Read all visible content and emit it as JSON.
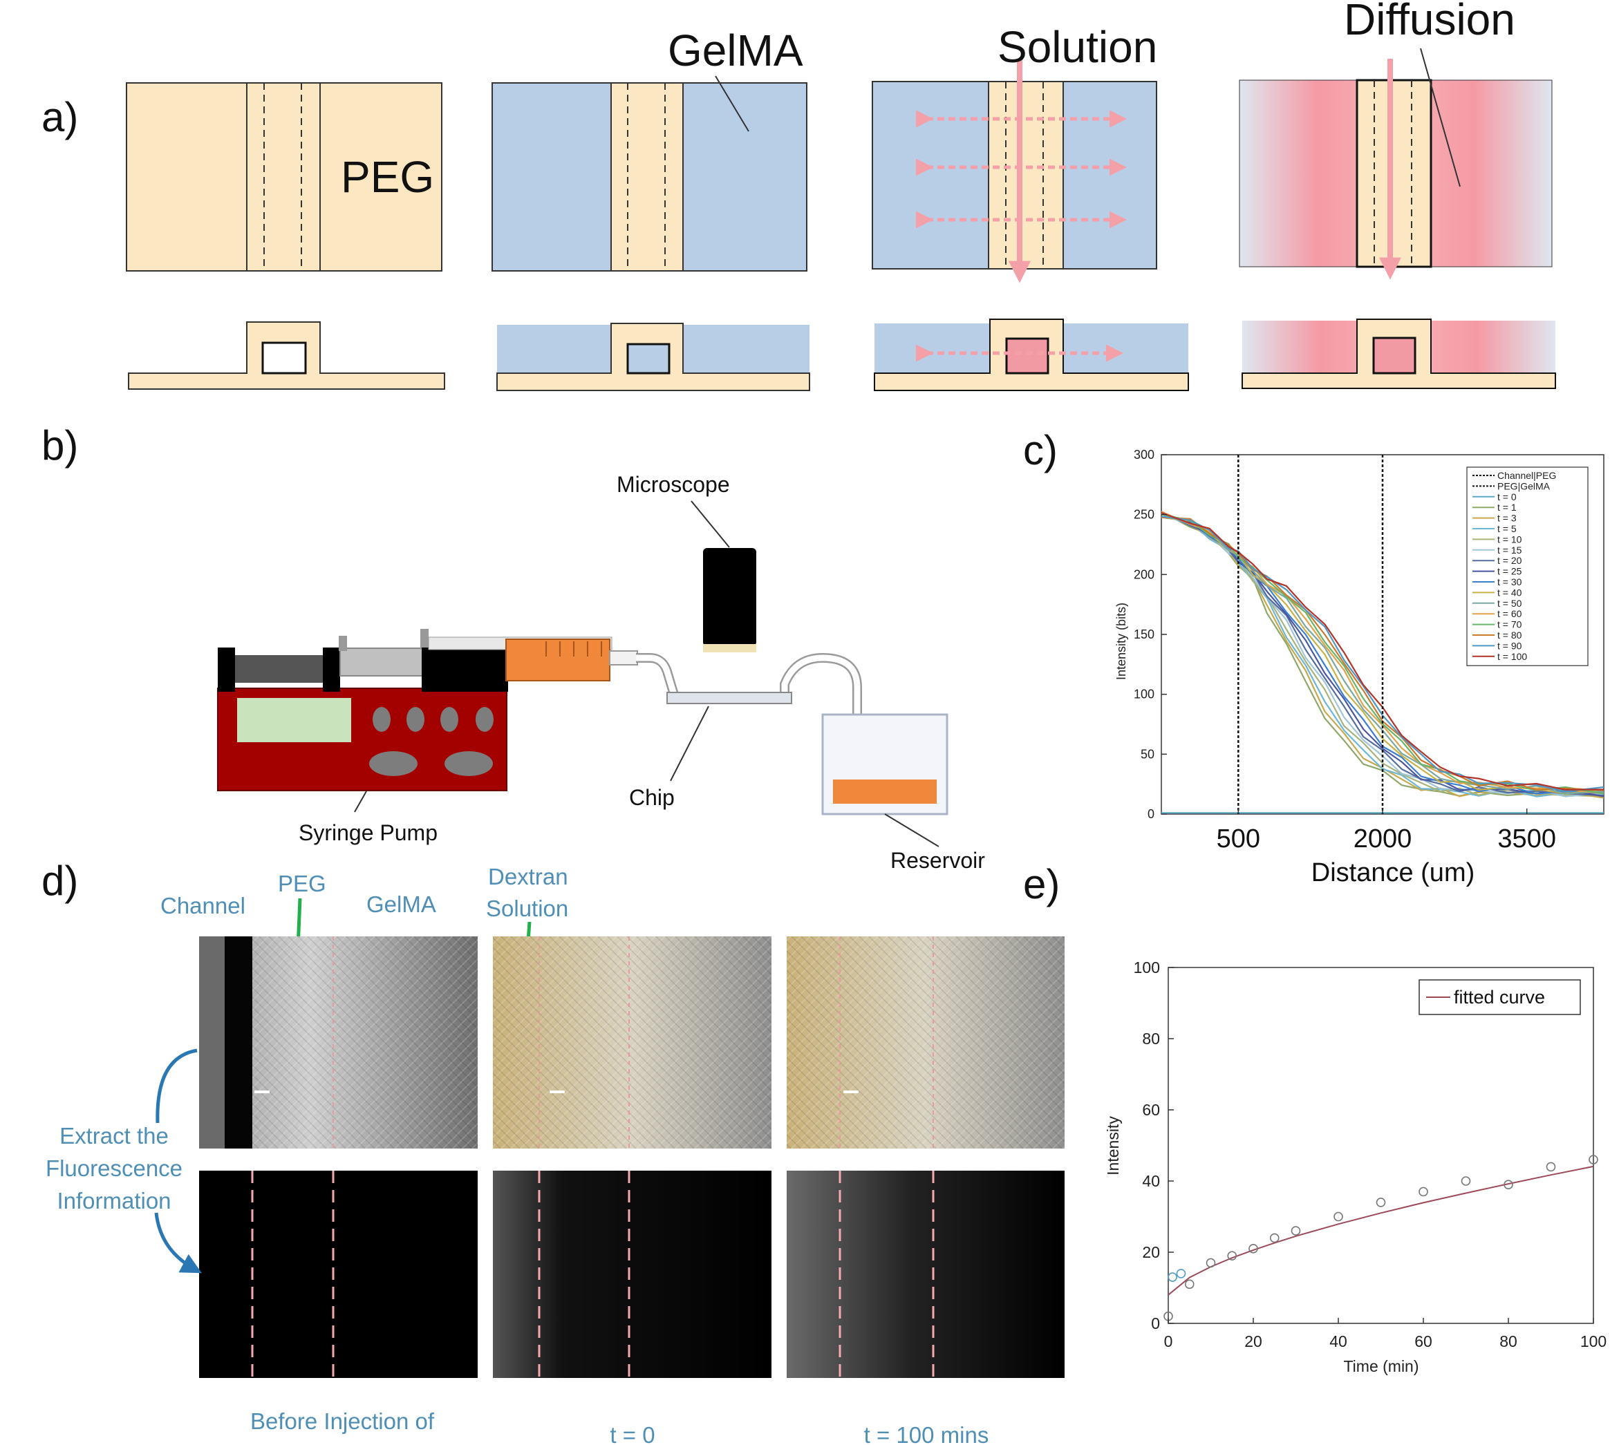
{
  "colors": {
    "peg": "#fbe8c3",
    "gelma": "#b8cde6",
    "dextran": "#f4a0a8",
    "pump_body": "#a30000",
    "syringe_fluid": "#f0883c",
    "annotation_blue": "#4f8fb6",
    "peg_marker": "#22b04a"
  },
  "panel_a": {
    "letter": "a)",
    "label_peg": "PEG",
    "label_gelma": "GelMA",
    "label_solution": "Solution",
    "label_diffusion": "Diffusion"
  },
  "panel_b": {
    "letter": "b)",
    "label_microscope": "Microscope",
    "label_syringe_pump": "Syringe Pump",
    "label_chip": "Chip",
    "label_reservoir": "Reservoir"
  },
  "panel_c": {
    "letter": "c)",
    "xlabel": "Distance (um)",
    "ylabel": "Intensity (bits)",
    "y_ticks": [
      "0",
      "50",
      "100",
      "150",
      "200",
      "250",
      "300"
    ],
    "x_ticks": [
      "500",
      "2000",
      "3500"
    ],
    "legend": [
      "Channel|PEG",
      "PEG|GelMA",
      "t = 0",
      "t = 1",
      "t = 3",
      "t = 5",
      "t = 10",
      "t = 15",
      "t = 20",
      "t = 25",
      "t = 30",
      "t = 40",
      "t = 50",
      "t = 60",
      "t = 70",
      "t = 80",
      "t = 90",
      "t = 100"
    ]
  },
  "panel_d": {
    "letter": "d)",
    "label_channel": "Channel",
    "label_peg": "PEG",
    "label_gelma": "GelMA",
    "label_dextran_line1": "Dextran",
    "label_dextran_line2": "Solution",
    "extract_line1": "Extract the",
    "extract_line2": "Fluorescence",
    "extract_line3": "Information",
    "caption_before": "Before Injection of",
    "caption_t0": "t = 0",
    "caption_t100": "t = 100 mins"
  },
  "panel_e": {
    "letter": "e)",
    "xlabel": "Time (min)",
    "ylabel": "Intensity",
    "legend_label": "fitted curve",
    "x_ticks": [
      "0",
      "20",
      "40",
      "60",
      "80",
      "100"
    ],
    "y_ticks": [
      "0",
      "20",
      "40",
      "60",
      "80",
      "100"
    ]
  },
  "chart_data": [
    {
      "type": "line",
      "panel": "c",
      "xlabel": "Distance (um)",
      "ylabel": "Intensity (bits)",
      "xlim": [
        -300,
        4300
      ],
      "ylim": [
        0,
        300
      ],
      "x_ticks": [
        500,
        2000,
        3500
      ],
      "y_ticks": [
        0,
        50,
        100,
        150,
        200,
        250,
        300
      ],
      "vertical_lines": [
        {
          "name": "Channel|PEG",
          "x": 500
        },
        {
          "name": "PEG|GelMA",
          "x": 2000
        }
      ],
      "legend_position": "top-right",
      "grid": false,
      "x": [
        -300,
        0,
        200,
        400,
        500,
        650,
        800,
        1000,
        1200,
        1400,
        1600,
        1800,
        2000,
        2200,
        2400,
        2600,
        2800,
        3000,
        3300,
        3600,
        3900,
        4300
      ],
      "series": [
        {
          "name": "t = 0",
          "values": [
            1,
            1,
            1,
            1,
            1,
            1,
            1,
            1,
            1,
            1,
            1,
            1,
            1,
            1,
            1,
            1,
            1,
            1,
            1,
            1,
            1,
            1
          ]
        },
        {
          "name": "t = 1",
          "values": [
            250,
            242,
            232,
            218,
            208,
            195,
            170,
            140,
            112,
            80,
            60,
            44,
            34,
            26,
            20,
            18,
            17,
            16,
            18,
            16,
            16,
            16
          ]
        },
        {
          "name": "t = 3",
          "values": [
            250,
            242,
            232,
            218,
            210,
            195,
            175,
            145,
            118,
            88,
            65,
            48,
            38,
            28,
            22,
            19,
            17,
            17,
            18,
            17,
            16,
            16
          ]
        },
        {
          "name": "t = 5",
          "values": [
            250,
            242,
            232,
            219,
            210,
            196,
            178,
            150,
            122,
            95,
            70,
            52,
            40,
            30,
            23,
            20,
            18,
            17,
            18,
            17,
            16,
            16
          ]
        },
        {
          "name": "t = 10",
          "values": [
            250,
            243,
            233,
            219,
            211,
            197,
            180,
            155,
            128,
            102,
            76,
            57,
            44,
            33,
            25,
            21,
            19,
            18,
            19,
            17,
            17,
            16
          ]
        },
        {
          "name": "t = 15",
          "values": [
            250,
            243,
            233,
            220,
            212,
            198,
            182,
            160,
            133,
            108,
            82,
            62,
            47,
            36,
            27,
            23,
            20,
            19,
            19,
            18,
            17,
            16
          ]
        },
        {
          "name": "t = 20",
          "values": [
            250,
            243,
            233,
            220,
            212,
            199,
            184,
            164,
            138,
            114,
            88,
            67,
            51,
            39,
            29,
            24,
            21,
            20,
            20,
            18,
            17,
            17
          ]
        },
        {
          "name": "t = 25",
          "values": [
            250,
            243,
            234,
            221,
            213,
            200,
            186,
            168,
            143,
            120,
            94,
            72,
            55,
            42,
            31,
            26,
            22,
            20,
            20,
            19,
            18,
            17
          ]
        },
        {
          "name": "t = 30",
          "values": [
            250,
            243,
            234,
            221,
            213,
            201,
            188,
            171,
            148,
            125,
            99,
            77,
            59,
            45,
            33,
            27,
            23,
            21,
            21,
            19,
            18,
            17
          ]
        },
        {
          "name": "t = 40",
          "values": [
            250,
            244,
            234,
            222,
            214,
            202,
            190,
            175,
            154,
            131,
            106,
            83,
            64,
            49,
            36,
            29,
            25,
            22,
            22,
            20,
            19,
            18
          ]
        },
        {
          "name": "t = 50",
          "values": [
            250,
            244,
            235,
            222,
            215,
            203,
            192,
            178,
            159,
            137,
            112,
            88,
            68,
            53,
            39,
            31,
            26,
            23,
            23,
            21,
            19,
            18
          ]
        },
        {
          "name": "t = 60",
          "values": [
            250,
            244,
            235,
            223,
            216,
            204,
            194,
            181,
            163,
            142,
            118,
            93,
            72,
            56,
            42,
            33,
            28,
            24,
            24,
            21,
            20,
            19
          ]
        },
        {
          "name": "t = 70",
          "values": [
            250,
            244,
            235,
            223,
            216,
            205,
            195,
            183,
            166,
            146,
            122,
            97,
            76,
            59,
            44,
            35,
            29,
            25,
            24,
            22,
            20,
            19
          ]
        },
        {
          "name": "t = 80",
          "values": [
            250,
            244,
            236,
            224,
            217,
            206,
            196,
            185,
            169,
            150,
            127,
            101,
            80,
            62,
            46,
            37,
            30,
            26,
            25,
            22,
            21,
            19
          ]
        },
        {
          "name": "t = 90",
          "values": [
            250,
            245,
            236,
            224,
            217,
            207,
            197,
            187,
            172,
            154,
            131,
            105,
            83,
            65,
            48,
            38,
            31,
            27,
            26,
            23,
            21,
            20
          ]
        },
        {
          "name": "t = 100",
          "values": [
            250,
            245,
            236,
            225,
            218,
            208,
            198,
            188,
            175,
            157,
            135,
            109,
            87,
            68,
            50,
            40,
            32,
            28,
            26,
            23,
            22,
            20
          ]
        }
      ]
    },
    {
      "type": "scatter",
      "panel": "e",
      "xlabel": "Time (min)",
      "ylabel": "Intensity",
      "xlim": [
        0,
        100
      ],
      "ylim": [
        0,
        100
      ],
      "x_ticks": [
        0,
        20,
        40,
        60,
        80,
        100
      ],
      "y_ticks": [
        0,
        20,
        40,
        60,
        80,
        100
      ],
      "legend_position": "top-right",
      "grid": false,
      "series": [
        {
          "name": "",
          "x": [
            0,
            1,
            3,
            5,
            10,
            15,
            20,
            25,
            30,
            40,
            50,
            60,
            70,
            80,
            90,
            100
          ],
          "y": [
            2,
            13,
            14,
            11,
            17,
            19,
            21,
            24,
            26,
            30,
            34,
            37,
            40,
            39,
            44,
            46
          ]
        },
        {
          "name": "fitted curve",
          "x": [
            0,
            5,
            10,
            15,
            20,
            25,
            30,
            40,
            50,
            60,
            70,
            80,
            90,
            100
          ],
          "y": [
            8,
            12.9,
            15.9,
            18.4,
            20.6,
            22.6,
            24.5,
            27.9,
            31.0,
            33.9,
            36.6,
            39.2,
            41.7,
            44.1
          ]
        }
      ]
    }
  ]
}
